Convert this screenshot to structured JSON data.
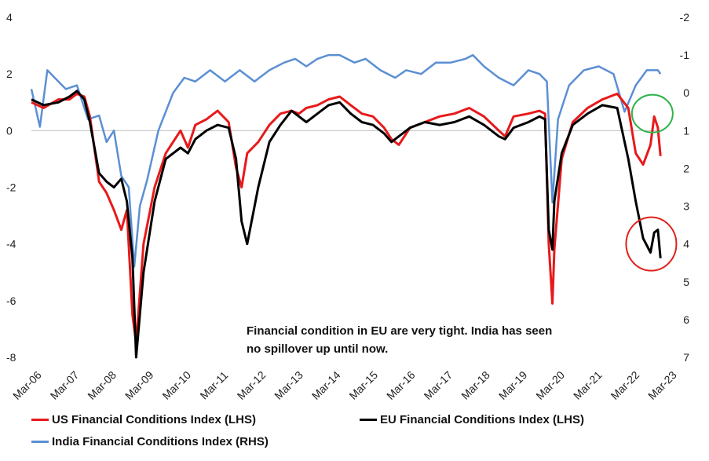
{
  "chart_data": {
    "type": "line",
    "title": "",
    "xlabel": "",
    "ylabel_left": "",
    "ylabel_right": "",
    "left_axis": {
      "ylim": [
        -8,
        4
      ],
      "ticks": [
        "4",
        "2",
        "0",
        "-2",
        "-4",
        "-6",
        "-8"
      ],
      "tick_values": [
        4,
        2,
        0,
        -2,
        -4,
        -6,
        -8
      ]
    },
    "right_axis": {
      "ylim": [
        -2,
        7
      ],
      "inverted": true,
      "ticks": [
        "-2",
        "-1",
        "0",
        "1",
        "2",
        "3",
        "4",
        "5",
        "6",
        "7"
      ],
      "tick_values": [
        -2,
        -1,
        0,
        1,
        2,
        3,
        4,
        5,
        6,
        7
      ]
    },
    "x_ticks": [
      "Mar-06",
      "Mar-07",
      "Mar-08",
      "Mar-09",
      "Mar-10",
      "Mar-11",
      "Mar-12",
      "Mar-13",
      "Mar-14",
      "Mar-15",
      "Mar-16",
      "Mar-17",
      "Mar-18",
      "Mar-19",
      "Mar-20",
      "Mar-21",
      "Mar-22",
      "Mar-23"
    ],
    "x_range": [
      2006.17,
      2023.25
    ],
    "grid": false,
    "legend_position": "bottom",
    "annotation": [
      "Financial condition in EU are very tight. India has seen",
      "no spillover up until now."
    ],
    "highlights": [
      {
        "series": "India Financial Conditions Index (RHS)",
        "shape": "circle",
        "color": "#2db34a",
        "x": 2022.95,
        "y": 0.6,
        "axis": "left"
      },
      {
        "series": "EU Financial Conditions Index (LHS)",
        "shape": "circle",
        "color": "#e0201b",
        "x": 2022.92,
        "y": -4.0,
        "axis": "left"
      }
    ],
    "series": [
      {
        "name": "US Financial Conditions Index (LHS)",
        "axis": "left",
        "color": "#e8191b",
        "x": [
          2006.17,
          2006.5,
          2006.9,
          2007.2,
          2007.4,
          2007.6,
          2007.75,
          2008.0,
          2008.2,
          2008.4,
          2008.6,
          2008.75,
          2008.9,
          2009.0,
          2009.2,
          2009.5,
          2009.8,
          2010.2,
          2010.4,
          2010.6,
          2010.9,
          2011.2,
          2011.5,
          2011.7,
          2011.85,
          2012.0,
          2012.3,
          2012.6,
          2012.9,
          2013.2,
          2013.4,
          2013.6,
          2013.9,
          2014.2,
          2014.5,
          2014.8,
          2015.1,
          2015.4,
          2015.7,
          2015.9,
          2016.1,
          2016.4,
          2016.8,
          2017.2,
          2017.6,
          2018.0,
          2018.4,
          2018.8,
          2018.97,
          2019.2,
          2019.6,
          2019.9,
          2020.05,
          2020.15,
          2020.25,
          2020.3,
          2020.5,
          2020.8,
          2021.2,
          2021.6,
          2022.0,
          2022.3,
          2022.5,
          2022.7,
          2022.9,
          2023.0,
          2023.1,
          2023.17
        ],
        "y": [
          1.0,
          0.8,
          1.1,
          1.1,
          1.3,
          1.2,
          0.5,
          -1.8,
          -2.2,
          -2.8,
          -3.5,
          -2.8,
          -6.5,
          -7.5,
          -4.0,
          -2.0,
          -0.8,
          0.0,
          -0.6,
          0.2,
          0.4,
          0.7,
          0.3,
          -1.3,
          -2.0,
          -0.8,
          -0.4,
          0.2,
          0.6,
          0.7,
          0.6,
          0.8,
          0.9,
          1.1,
          1.2,
          0.9,
          0.6,
          0.5,
          0.1,
          -0.3,
          -0.5,
          0.1,
          0.3,
          0.5,
          0.6,
          0.8,
          0.5,
          0.0,
          -0.2,
          0.5,
          0.6,
          0.7,
          0.6,
          -4.0,
          -6.1,
          -4.2,
          -1.0,
          0.3,
          0.8,
          1.1,
          1.3,
          0.8,
          -0.8,
          -1.2,
          -0.5,
          0.5,
          0.1,
          -0.9
        ]
      },
      {
        "name": "EU Financial Conditions Index (LHS)",
        "axis": "left",
        "color": "#000000",
        "x": [
          2006.17,
          2006.5,
          2006.9,
          2007.2,
          2007.4,
          2007.6,
          2007.75,
          2008.0,
          2008.2,
          2008.4,
          2008.6,
          2008.75,
          2008.9,
          2009.0,
          2009.2,
          2009.5,
          2009.8,
          2010.2,
          2010.4,
          2010.6,
          2010.9,
          2011.2,
          2011.5,
          2011.7,
          2011.85,
          2012.0,
          2012.3,
          2012.6,
          2012.9,
          2013.2,
          2013.4,
          2013.6,
          2013.9,
          2014.2,
          2014.5,
          2014.8,
          2015.1,
          2015.4,
          2015.7,
          2015.9,
          2016.1,
          2016.4,
          2016.8,
          2017.2,
          2017.6,
          2018.0,
          2018.4,
          2018.8,
          2018.97,
          2019.2,
          2019.6,
          2019.9,
          2020.05,
          2020.15,
          2020.25,
          2020.3,
          2020.5,
          2020.8,
          2021.2,
          2021.6,
          2022.0,
          2022.3,
          2022.5,
          2022.7,
          2022.9,
          2023.0,
          2023.1,
          2023.17
        ],
        "y": [
          1.1,
          0.9,
          1.0,
          1.2,
          1.4,
          1.1,
          0.3,
          -1.5,
          -1.8,
          -2.0,
          -1.7,
          -2.5,
          -4.5,
          -8.0,
          -5.0,
          -2.5,
          -1.0,
          -0.6,
          -0.8,
          -0.3,
          0.0,
          0.2,
          0.1,
          -1.0,
          -3.2,
          -4.0,
          -2.0,
          -0.4,
          0.2,
          0.7,
          0.5,
          0.3,
          0.6,
          0.9,
          1.0,
          0.6,
          0.3,
          0.2,
          -0.1,
          -0.4,
          -0.2,
          0.1,
          0.3,
          0.2,
          0.3,
          0.5,
          0.2,
          -0.2,
          -0.3,
          0.1,
          0.3,
          0.5,
          0.4,
          -3.5,
          -4.2,
          -2.5,
          -0.8,
          0.2,
          0.6,
          0.9,
          0.8,
          -1.0,
          -2.5,
          -3.8,
          -4.3,
          -3.6,
          -3.5,
          -4.5
        ]
      },
      {
        "name": "India Financial Conditions Index (RHS)",
        "axis": "right",
        "color": "#5b8fd4",
        "x": [
          2006.17,
          2006.4,
          2006.6,
          2006.8,
          2007.1,
          2007.4,
          2007.7,
          2008.0,
          2008.2,
          2008.4,
          2008.6,
          2008.8,
          2008.95,
          2009.1,
          2009.3,
          2009.6,
          2010.0,
          2010.3,
          2010.6,
          2011.0,
          2011.4,
          2011.8,
          2012.2,
          2012.6,
          2013.0,
          2013.3,
          2013.6,
          2013.9,
          2014.2,
          2014.5,
          2014.9,
          2015.2,
          2015.6,
          2016.0,
          2016.3,
          2016.7,
          2017.1,
          2017.5,
          2017.9,
          2018.1,
          2018.4,
          2018.8,
          2019.2,
          2019.6,
          2019.9,
          2020.1,
          2020.25,
          2020.4,
          2020.7,
          2021.1,
          2021.5,
          2021.9,
          2022.2,
          2022.5,
          2022.8,
          2023.0,
          2023.1,
          2023.17
        ],
        "y": [
          -0.1,
          0.9,
          -0.6,
          -0.4,
          -0.1,
          -0.2,
          0.7,
          0.6,
          1.3,
          1.0,
          2.2,
          2.5,
          4.6,
          3.0,
          2.3,
          1.0,
          0.0,
          -0.4,
          -0.3,
          -0.6,
          -0.3,
          -0.6,
          -0.3,
          -0.6,
          -0.8,
          -0.9,
          -0.7,
          -0.9,
          -1.0,
          -1.0,
          -0.8,
          -0.9,
          -0.6,
          -0.4,
          -0.6,
          -0.5,
          -0.8,
          -0.8,
          -0.9,
          -1.0,
          -0.7,
          -0.4,
          -0.2,
          -0.6,
          -0.5,
          -0.3,
          2.9,
          0.7,
          -0.2,
          -0.6,
          -0.7,
          -0.5,
          0.5,
          -0.2,
          -0.6,
          -0.6,
          -0.6,
          -0.5
        ]
      }
    ]
  }
}
